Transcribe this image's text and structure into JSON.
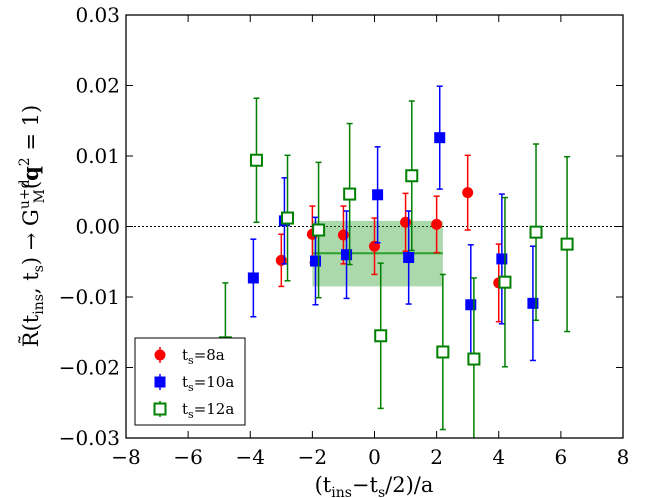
{
  "chart_data": {
    "type": "scatter",
    "xlabel": "(t_ins−t_s/2)/a",
    "ylabel": "R̃(t_ins, t_s) → G_M^{u+d}(q² = 1)",
    "xlim": [
      -8,
      8
    ],
    "ylim": [
      -0.03,
      0.03
    ],
    "x_ticks": [
      -8,
      -6,
      -4,
      -2,
      0,
      2,
      4,
      6,
      8
    ],
    "x_tick_labels": [
      "−8",
      "−6",
      "−4",
      "−2",
      "0",
      "2",
      "4",
      "6",
      "8"
    ],
    "y_ticks": [
      0.03,
      0.02,
      0.01,
      0.0,
      -0.01,
      -0.02,
      -0.03
    ],
    "y_tick_labels": [
      "0.03",
      "0.02",
      "0.01",
      "0.00",
      "−0.01",
      "−0.02",
      "−0.03"
    ],
    "zero_line": true,
    "fit_band": {
      "x_range": [
        -2,
        2.2
      ],
      "central": -0.0038,
      "low": -0.0085,
      "high": 0.0008,
      "color": "#2ca02c"
    },
    "series": [
      {
        "name": "t_s=8a",
        "marker": "circle",
        "color": "#ff0000",
        "points": [
          {
            "x": -3,
            "y": -0.0048,
            "err": 0.0037
          },
          {
            "x": -2,
            "y": -0.0011,
            "err": 0.004
          },
          {
            "x": -1,
            "y": -0.0012,
            "err": 0.0041
          },
          {
            "x": 0,
            "y": -0.0028,
            "err": 0.004
          },
          {
            "x": 1,
            "y": 0.0006,
            "err": 0.0041
          },
          {
            "x": 2,
            "y": 0.0003,
            "err": 0.004
          },
          {
            "x": 3,
            "y": 0.0048,
            "err": 0.0053
          },
          {
            "x": 4,
            "y": -0.008,
            "err": 0.0055
          }
        ]
      },
      {
        "name": "t_s=10a",
        "marker": "square",
        "color": "#0000ff",
        "points": [
          {
            "x": -3.9,
            "y": -0.0073,
            "err": 0.0055
          },
          {
            "x": -2.9,
            "y": 0.0008,
            "err": 0.0061
          },
          {
            "x": -1.9,
            "y": -0.0049,
            "err": 0.0062
          },
          {
            "x": -0.9,
            "y": -0.004,
            "err": 0.0062
          },
          {
            "x": 0.1,
            "y": 0.0045,
            "err": 0.0068
          },
          {
            "x": 1.1,
            "y": -0.0044,
            "err": 0.0066
          },
          {
            "x": 2.1,
            "y": 0.0126,
            "err": 0.0073
          },
          {
            "x": 3.1,
            "y": -0.0111,
            "err": 0.0085
          },
          {
            "x": 4.1,
            "y": -0.0046,
            "err": 0.0092
          },
          {
            "x": 5.1,
            "y": -0.0109,
            "err": 0.0081
          }
        ]
      },
      {
        "name": "t_s=12a",
        "marker": "square-open",
        "color": "#008000",
        "points": [
          {
            "x": -4.8,
            "y": -0.0165,
            "err": 0.0085
          },
          {
            "x": -3.8,
            "y": 0.0094,
            "err": 0.0088
          },
          {
            "x": -2.8,
            "y": 0.0012,
            "err": 0.0089
          },
          {
            "x": -1.8,
            "y": -0.0005,
            "err": 0.0096
          },
          {
            "x": -0.8,
            "y": 0.0046,
            "err": 0.01
          },
          {
            "x": 0.2,
            "y": -0.0155,
            "err": 0.0103
          },
          {
            "x": 1.2,
            "y": 0.0072,
            "err": 0.0106
          },
          {
            "x": 2.2,
            "y": -0.0178,
            "err": 0.011
          },
          {
            "x": 3.2,
            "y": -0.0188,
            "err": 0.0115
          },
          {
            "x": 4.2,
            "y": -0.0079,
            "err": 0.012
          },
          {
            "x": 5.2,
            "y": -0.0008,
            "err": 0.0125
          },
          {
            "x": 6.2,
            "y": -0.0025,
            "err": 0.0124
          }
        ]
      }
    ],
    "legend": {
      "location": "lower-left",
      "entries": [
        "t_s=8a",
        "t_s=10a",
        "t_s=12a"
      ]
    }
  }
}
